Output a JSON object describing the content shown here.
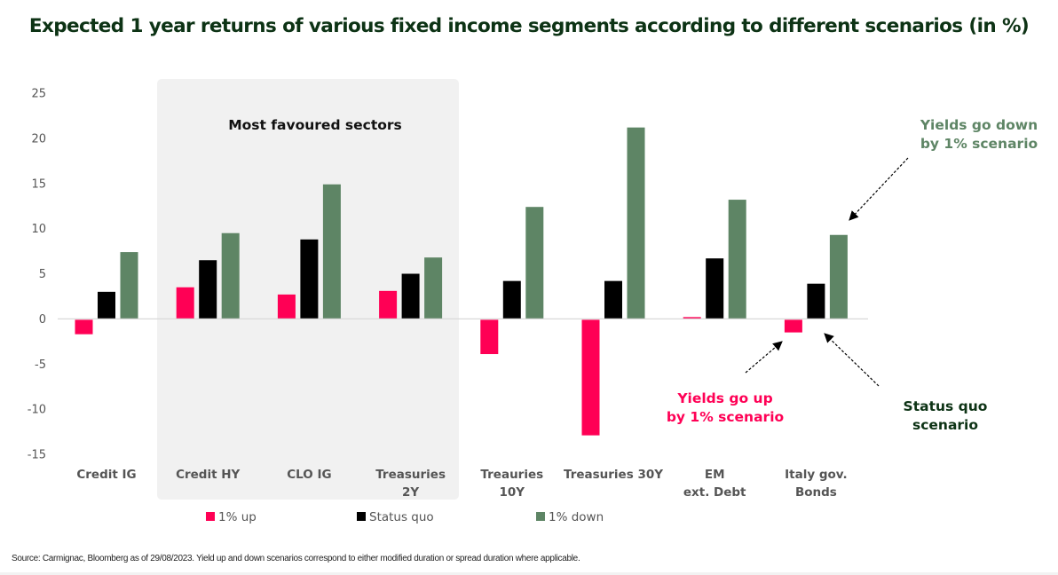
{
  "title": "Expected 1 year returns of various fixed income segments according to different scenarios (in %)",
  "source": "Source: Carmignac, Bloomberg as of 29/08/2023. Yield up and down scenarios correspond to either modified duration or spread duration where applicable.",
  "colors": {
    "up": "#ff0055",
    "status_quo": "#000000",
    "down": "#5e8565",
    "title": "#0d3315",
    "highlight_bg": "#f1f1f1",
    "annot_status_quo": "#0d3315"
  },
  "chart_data": {
    "type": "bar",
    "title": "Expected 1 year returns of various fixed income segments according to different scenarios (in %)",
    "xlabel": "",
    "ylabel": "",
    "ylim": [
      -15,
      25
    ],
    "yticks": [
      25,
      20,
      15,
      10,
      5,
      0,
      -5,
      -10,
      -15
    ],
    "grid": false,
    "legend_position": "bottom",
    "categories": [
      [
        "Credit IG"
      ],
      [
        "Credit HY"
      ],
      [
        "CLO IG"
      ],
      [
        "Treasuries",
        "2Y"
      ],
      [
        "Treauries",
        "10Y"
      ],
      [
        "Treasuries 30Y"
      ],
      [
        "EM",
        "ext. Debt"
      ],
      [
        "Italy gov.",
        "Bonds"
      ]
    ],
    "series": [
      {
        "name": "1% up",
        "color_key": "up",
        "values": [
          -1.6,
          3.5,
          2.7,
          3.1,
          -3.8,
          -12.8,
          0.2,
          -1.4
        ]
      },
      {
        "name": "Status quo",
        "color_key": "status_quo",
        "values": [
          3.0,
          6.5,
          8.8,
          5.0,
          4.2,
          4.2,
          6.7,
          3.9
        ]
      },
      {
        "name": "1% down",
        "color_key": "down",
        "values": [
          7.4,
          9.5,
          14.9,
          6.8,
          12.4,
          21.2,
          13.2,
          9.3
        ]
      }
    ],
    "highlight": {
      "label": "Most favoured sectors",
      "from_category": 1,
      "to_category": 3
    },
    "annotations": [
      {
        "lines": [
          "Yields go down",
          "by 1% scenario"
        ],
        "color_key": "down",
        "target": "Italy gov. Bonds / 1% down"
      },
      {
        "lines": [
          "Yields go up",
          "by 1% scenario"
        ],
        "color_key": "up",
        "target": "Italy gov. Bonds / 1% up"
      },
      {
        "lines": [
          "Status quo",
          "scenario"
        ],
        "color_key": "annot_status_quo",
        "target": "Italy gov. Bonds / Status quo"
      }
    ]
  }
}
